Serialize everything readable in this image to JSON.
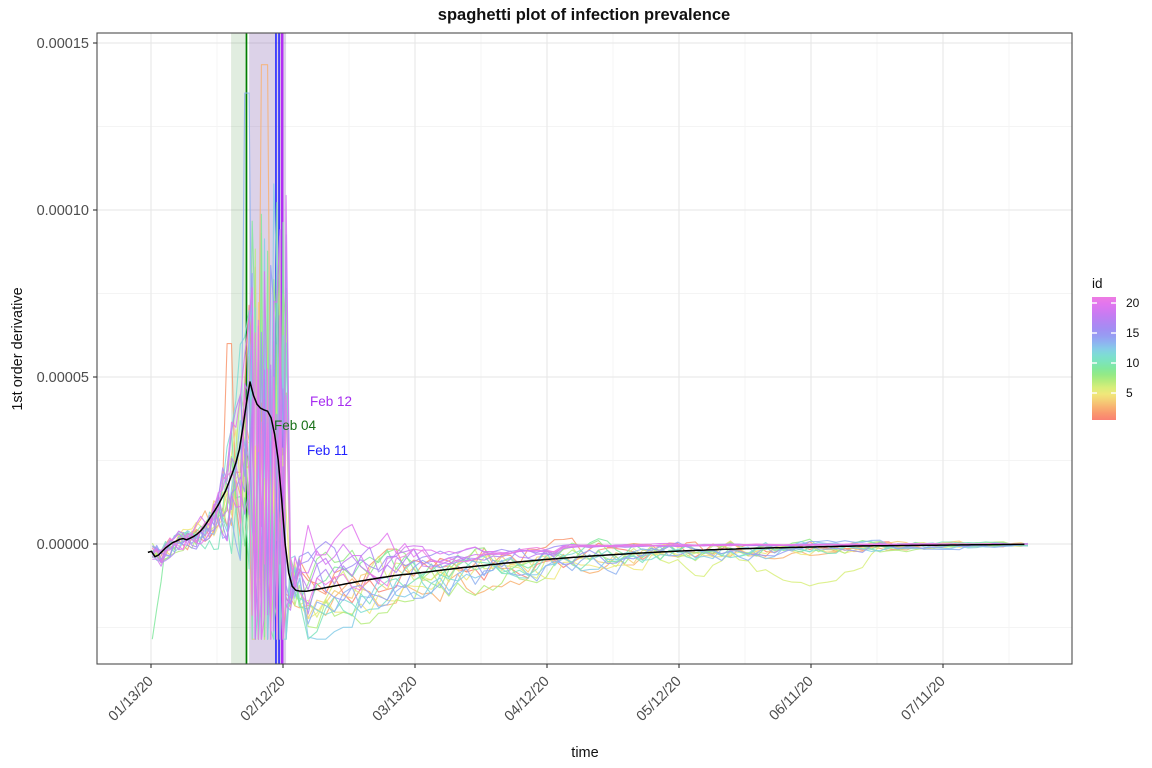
{
  "chart_data": {
    "type": "line",
    "subtype": "spaghetti",
    "title": "spaghetti plot of infection prevalence",
    "xlabel": "time",
    "ylabel": "1st order derivative",
    "value_units": "absolute y value = listed value × 1e-5",
    "x_axis": {
      "tick_labels": [
        "01/13/20",
        "02/12/20",
        "03/13/20",
        "04/12/20",
        "05/12/20",
        "06/11/20",
        "07/11/20"
      ],
      "tick_days": [
        0,
        30,
        60,
        90,
        120,
        150,
        180
      ],
      "start_day": -0.7,
      "end_day": 199.3,
      "minor_grid": true,
      "label_angle_deg": -45
    },
    "y_axis": {
      "tick_labels": [
        "0.00000",
        "0.00005",
        "0.00010",
        "0.00015"
      ],
      "tick_values": [
        0,
        5,
        10,
        15
      ],
      "ylim": [
        -3.6,
        15.3
      ],
      "minor_grid": true
    },
    "grid": {
      "major_color": "#e9e9e9",
      "minor_color": "#f4f4f4",
      "panel_border": "#4d4d4d",
      "tick_color": "#333333"
    },
    "bands": [
      {
        "from_day": 18.2,
        "to_day": 21.7,
        "color": "rgba(70,140,60,0.16)",
        "name": "green-band"
      },
      {
        "from_day": 22.3,
        "to_day": 30.7,
        "color": "rgba(118,82,168,0.26)",
        "name": "purple-band"
      }
    ],
    "vlines": [
      {
        "day": 21.7,
        "color": "#007d00",
        "width": 1.7,
        "date": "Feb 04"
      },
      {
        "day": 28.4,
        "color": "#2424ff",
        "width": 1.6,
        "date": "Feb 11"
      },
      {
        "day": 29.1,
        "color": "#2424ff",
        "width": 1.6,
        "date": "Feb 11"
      },
      {
        "day": 29.8,
        "color": "#b32ef5",
        "width": 2.6,
        "date": "Feb 12"
      }
    ],
    "annotations": [
      {
        "text": "Feb 12",
        "color": "#a62cf0",
        "x": 352,
        "y": 406
      },
      {
        "text": "Feb 04",
        "color": "#187018",
        "x": 316,
        "y": 430
      },
      {
        "text": "Feb 11",
        "color": "#2121ff",
        "x": 348,
        "y": 455
      }
    ],
    "mean_line": {
      "color": "#000000",
      "width": 1.5,
      "points": [
        [
          -0.7,
          -0.25
        ],
        [
          0,
          -0.2
        ],
        [
          1,
          -0.4
        ],
        [
          2,
          -0.3
        ],
        [
          3,
          -0.15
        ],
        [
          4,
          -0.05
        ],
        [
          5,
          0.05
        ],
        [
          6,
          0.1
        ],
        [
          7,
          0.18
        ],
        [
          8,
          0.12
        ],
        [
          9,
          0.18
        ],
        [
          10,
          0.25
        ],
        [
          11,
          0.35
        ],
        [
          12,
          0.5
        ],
        [
          13,
          0.7
        ],
        [
          14,
          0.9
        ],
        [
          15,
          1.1
        ],
        [
          16,
          1.35
        ],
        [
          17,
          1.6
        ],
        [
          18,
          1.95
        ],
        [
          19,
          2.3
        ],
        [
          20,
          2.75
        ],
        [
          21,
          3.6
        ],
        [
          22,
          4.5
        ],
        [
          22.5,
          4.85
        ],
        [
          23,
          4.55
        ],
        [
          24,
          4.2
        ],
        [
          25,
          4.05
        ],
        [
          26,
          4.0
        ],
        [
          27,
          3.95
        ],
        [
          27.6,
          3.6
        ],
        [
          28.4,
          3.1
        ],
        [
          29,
          2.4
        ],
        [
          29.6,
          1.5
        ],
        [
          30.2,
          0.4
        ],
        [
          31,
          -0.7
        ],
        [
          32,
          -1.25
        ],
        [
          33,
          -1.4
        ],
        [
          35,
          -1.42
        ],
        [
          38,
          -1.35
        ],
        [
          42,
          -1.25
        ],
        [
          48,
          -1.1
        ],
        [
          55,
          -0.95
        ],
        [
          62,
          -0.85
        ],
        [
          70,
          -0.72
        ],
        [
          80,
          -0.58
        ],
        [
          90,
          -0.46
        ],
        [
          100,
          -0.36
        ],
        [
          110,
          -0.28
        ],
        [
          120,
          -0.21
        ],
        [
          130,
          -0.16
        ],
        [
          140,
          -0.12
        ],
        [
          150,
          -0.09
        ],
        [
          160,
          -0.06
        ],
        [
          175,
          -0.04
        ],
        [
          190,
          -0.02
        ],
        [
          199.3,
          -0.01
        ]
      ]
    },
    "noise_envelope": [
      [
        -0.7,
        0.3
      ],
      [
        8,
        0.35
      ],
      [
        12,
        0.5
      ],
      [
        15,
        1.0
      ],
      [
        18,
        2.0
      ],
      [
        20,
        3.2
      ],
      [
        21.5,
        4.6
      ],
      [
        23,
        5.6
      ],
      [
        30.3,
        5.6
      ],
      [
        31,
        1.1
      ],
      [
        33,
        0.7
      ],
      [
        40,
        0.5
      ],
      [
        60,
        0.38
      ],
      [
        90,
        0.28
      ],
      [
        120,
        0.2
      ],
      [
        150,
        0.14
      ],
      [
        180,
        0.07
      ],
      [
        199.3,
        0.03
      ]
    ],
    "series": {
      "count": 20,
      "ids": [
        1,
        2,
        3,
        4,
        5,
        6,
        7,
        8,
        9,
        10,
        11,
        12,
        13,
        14,
        15,
        16,
        17,
        18,
        19,
        20
      ],
      "colors": [
        "#fa8072",
        "#f9976e",
        "#f8b271",
        "#f4cf76",
        "#f0e87a",
        "#d8ee7a",
        "#b5ec7c",
        "#95ea86",
        "#81e89e",
        "#7ce4bc",
        "#7eddd2",
        "#86cce8",
        "#8fb2f1",
        "#979df3",
        "#a18ff3",
        "#b086f3",
        "#c17ef2",
        "#d378f1",
        "#e276ee",
        "#ee7ce2"
      ],
      "seeds": [
        11,
        23,
        37,
        41,
        53,
        67,
        79,
        83,
        97,
        101,
        113,
        127,
        131,
        149,
        151,
        163,
        173,
        181,
        193,
        199
      ],
      "stroke_width": 1.1,
      "stroke_opacity": 0.85,
      "phase_boundaries": {
        "rise_start": 12,
        "zigzag_start": 21.5,
        "crash_start": 30.5,
        "crash_end": 33.5
      },
      "start_dips": [
        {
          "id": 9,
          "depth": -2.25
        }
      ],
      "late_dips": [
        {
          "id": 6,
          "center": 147,
          "width": 17,
          "depth": -1.05
        },
        {
          "id": 6,
          "center": 122,
          "width": 10,
          "depth": -0.55
        }
      ],
      "point_spikes": [
        {
          "id": 2,
          "day": 16.5,
          "value": 6.0
        },
        {
          "id": 13,
          "day": 20.5,
          "value": 13.5
        },
        {
          "id": 3,
          "day": 24.7,
          "value": 14.35
        }
      ],
      "fast_converge_ids": [
        15,
        16,
        17,
        18,
        19,
        20
      ],
      "clamp": [
        -2.85,
        14.6
      ]
    },
    "legend": {
      "title": "id",
      "labels": [
        "20",
        "15",
        "10",
        "5"
      ],
      "label_ids": [
        20,
        15,
        10,
        5
      ],
      "id_range": [
        1,
        20
      ],
      "position": "right",
      "gradient_bottom_to_top": [
        "#fa8072",
        "#f9976e",
        "#f8b271",
        "#f4cf76",
        "#f0e87a",
        "#d8ee7a",
        "#b5ec7c",
        "#95ea86",
        "#81e89e",
        "#7ce4bc",
        "#7eddd2",
        "#86cce8",
        "#8fb2f1",
        "#979df3",
        "#a18ff3",
        "#b086f3",
        "#c17ef2",
        "#d378f1",
        "#e276ee",
        "#ee7ce2"
      ]
    }
  }
}
